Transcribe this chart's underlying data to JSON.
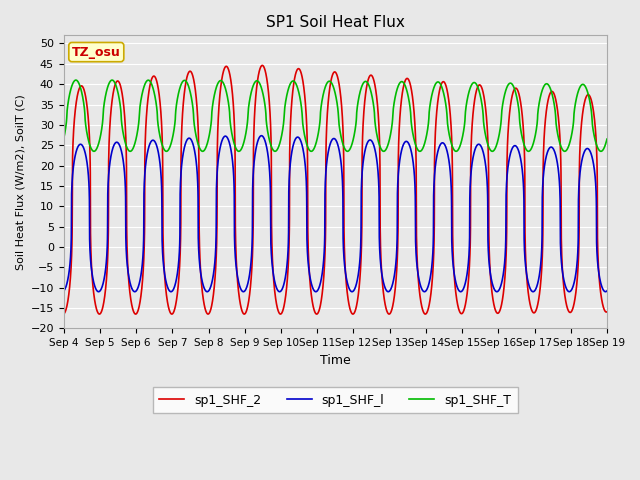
{
  "title": "SP1 Soil Heat Flux",
  "xlabel": "Time",
  "ylabel": "Soil Heat Flux (W/m2), SoilT (C)",
  "xlim_days": [
    0,
    15
  ],
  "ylim": [
    -20,
    52
  ],
  "yticks": [
    -20,
    -15,
    -10,
    -5,
    0,
    5,
    10,
    15,
    20,
    25,
    30,
    35,
    40,
    45,
    50
  ],
  "xtick_labels": [
    "Sep 4",
    "Sep 5",
    "Sep 6",
    "Sep 7",
    "Sep 8",
    "Sep 9",
    "Sep 10",
    "Sep 11",
    "Sep 12",
    "Sep 13",
    "Sep 14",
    "Sep 15",
    "Sep 16",
    "Sep 17",
    "Sep 18",
    "Sep 19"
  ],
  "xtick_positions": [
    0,
    1,
    2,
    3,
    4,
    5,
    6,
    7,
    8,
    9,
    10,
    11,
    12,
    13,
    14,
    15
  ],
  "color_shf2": "#dd0000",
  "color_shf1": "#0000cc",
  "color_shft": "#00bb00",
  "label_shf2": "sp1_SHF_2",
  "label_shf1": "sp1_SHF_l",
  "label_shft": "sp1_SHF_T",
  "tz_label": "TZ_osu",
  "plot_bg_color": "#e8e8e8",
  "linewidth": 1.2
}
